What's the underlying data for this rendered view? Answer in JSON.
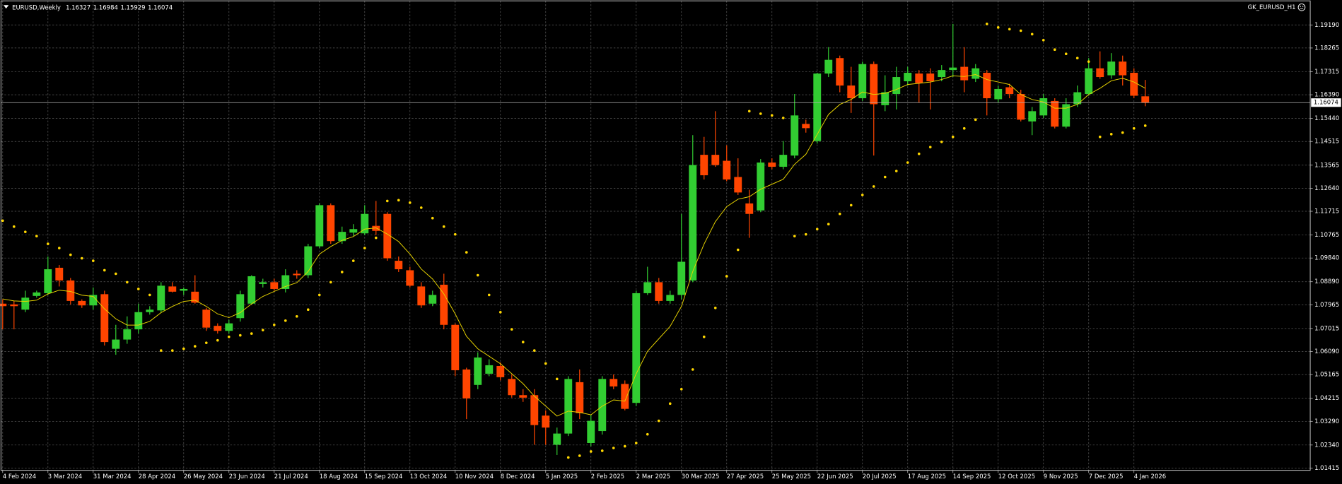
{
  "chart_data": {
    "type": "candlestick",
    "symbol": "EURUSD,Weekly",
    "indicator": "GK_EURUSD_H1",
    "up_color": "#32cd32",
    "down_color": "#ff4500",
    "ma_color": "#e6d200",
    "sar_color": "#ffd700",
    "grid": true,
    "categories": [
      "4 Feb 2024",
      null,
      null,
      null,
      "3 Mar 2024",
      null,
      null,
      null,
      "31 Mar 2024",
      null,
      null,
      null,
      "28 Apr 2024",
      null,
      null,
      null,
      "26 May 2024",
      null,
      null,
      null,
      "23 Jun 2024",
      null,
      null,
      null,
      "21 Jul 2024",
      null,
      null,
      null,
      "18 Aug 2024",
      null,
      null,
      null,
      "15 Sep 2024",
      null,
      null,
      null,
      "13 Oct 2024",
      null,
      null,
      null,
      "10 Nov 2024",
      null,
      null,
      null,
      "8 Dec 2024",
      null,
      null,
      null,
      "5 Jan 2025",
      null,
      null,
      null,
      "2 Feb 2025",
      null,
      null,
      null,
      "2 Mar 2025",
      null,
      null,
      null,
      "30 Mar 2025",
      null,
      null,
      null,
      "27 Apr 2025",
      null,
      null,
      null,
      "25 May 2025",
      null,
      null,
      null,
      "22 Jun 2025",
      null,
      null,
      null,
      "20 Jul 2025",
      null,
      null,
      null,
      "17 Aug 2025",
      null,
      null,
      null,
      "14 Sep 2025",
      null,
      null,
      null,
      "12 Oct 2025",
      null,
      null,
      null,
      "9 Nov 2025",
      null,
      null,
      null,
      "7 Dec 2025",
      null,
      null,
      null,
      "4 Jan 2026",
      null
    ],
    "open": [
      1.0801,
      1.0798,
      1.0777,
      1.0832,
      1.0843,
      1.0945,
      1.0894,
      1.0812,
      1.0794,
      1.0839,
      1.062,
      1.0657,
      1.0698,
      1.0767,
      1.0774,
      1.087,
      1.0853,
      1.0849,
      1.0777,
      1.0712,
      1.0692,
      1.0743,
      1.0801,
      1.088,
      1.0887,
      1.086,
      1.0921,
      1.0915,
      1.1031,
      1.1196,
      1.1052,
      1.1086,
      1.1083,
      1.1113,
      1.1161,
      1.0973,
      1.0935,
      1.087,
      1.0801,
      1.0877,
      1.0716,
      1.0537,
      1.0475,
      1.052,
      1.0551,
      1.0499,
      1.0434,
      1.0434,
      1.0352,
      1.0235,
      1.028,
      1.0486,
      1.0242,
      1.029,
      1.0499,
      1.0479,
      1.0403,
      1.0843,
      1.0887,
      1.0812,
      1.0836,
      1.0894,
      1.1398,
      1.1398,
      1.1374,
      1.1309,
      1.1203,
      1.1175,
      1.1367,
      1.135,
      1.1395,
      1.1522,
      1.1453,
      1.1724,
      1.1786,
      1.1676,
      1.1625,
      1.1762,
      1.1597,
      1.1642,
      1.1693,
      1.1724,
      1.1724,
      1.171,
      1.1738,
      1.1751,
      1.1703,
      1.1727,
      1.1621,
      1.1669,
      1.1642,
      1.1532,
      1.1556,
      1.1614,
      1.1511,
      1.1601,
      1.1642,
      1.1745,
      1.1717,
      1.1772,
      1.1727,
      1.16327
    ],
    "high": [
      1.0818,
      1.0812,
      1.0853,
      1.0853,
      1.099,
      1.0956,
      1.0904,
      1.0818,
      1.0866,
      1.0853,
      1.0716,
      1.075,
      1.0801,
      1.0791,
      1.0887,
      1.0887,
      1.0866,
      1.0915,
      1.0784,
      1.0722,
      1.0736,
      1.0853,
      1.0915,
      1.0901,
      1.0901,
      1.0939,
      1.0935,
      1.1041,
      1.1203,
      1.1203,
      1.111,
      1.112,
      1.1196,
      1.1213,
      1.1168,
      1.099,
      1.0949,
      1.0887,
      1.0853,
      1.0921,
      1.0722,
      1.0544,
      1.0606,
      1.0578,
      1.0565,
      1.0517,
      1.0458,
      1.0458,
      1.0373,
      1.0304,
      1.051,
      1.0537,
      1.0355,
      1.051,
      1.0517,
      1.0493,
      1.0853,
      1.0949,
      1.0904,
      1.0853,
      1.1161,
      1.1477,
      1.147,
      1.1573,
      1.1436,
      1.1384,
      1.1258,
      1.1381,
      1.1384,
      1.1453,
      1.1642,
      1.1539,
      1.1727,
      1.183,
      1.1796,
      1.1751,
      1.1772,
      1.1772,
      1.1717,
      1.1751,
      1.1751,
      1.1738,
      1.1745,
      1.1758,
      1.1923,
      1.183,
      1.1762,
      1.1738,
      1.1676,
      1.1683,
      1.1659,
      1.159,
      1.1642,
      1.1625,
      1.1625,
      1.1676,
      1.1786,
      1.1813,
      1.1806,
      1.1796,
      1.1745,
      1.16984
    ],
    "low": [
      1.0698,
      1.0698,
      1.0767,
      1.0825,
      1.0836,
      1.087,
      1.0798,
      1.0784,
      1.0777,
      1.0633,
      1.0596,
      1.064,
      1.0681,
      1.0757,
      1.0764,
      1.0846,
      1.0836,
      1.0801,
      1.0692,
      1.0681,
      1.0681,
      1.0729,
      1.0798,
      1.0866,
      1.0853,
      1.0846,
      1.0901,
      1.0904,
      1.1024,
      1.1041,
      1.1041,
      1.1072,
      1.1076,
      1.1076,
      1.0973,
      1.0928,
      1.0866,
      1.0784,
      1.0791,
      1.0698,
      1.051,
      1.0338,
      1.0458,
      1.051,
      1.0493,
      1.0424,
      1.0407,
      1.0235,
      1.0235,
      1.0194,
      1.027,
      1.0338,
      1.0229,
      1.0276,
      1.0458,
      1.0373,
      1.039,
      1.0836,
      1.0801,
      1.0801,
      1.0818,
      1.0887,
      1.1299,
      1.135,
      1.1292,
      1.1237,
      1.1065,
      1.1168,
      1.134,
      1.134,
      1.1384,
      1.1487,
      1.1443,
      1.171,
      1.1649,
      1.1566,
      1.1614,
      1.1395,
      1.1573,
      1.158,
      1.1676,
      1.1607,
      1.158,
      1.1693,
      1.171,
      1.1649,
      1.169,
      1.1556,
      1.1607,
      1.1625,
      1.1532,
      1.1477,
      1.1546,
      1.1504,
      1.1504,
      1.159,
      1.1635,
      1.1703,
      1.1703,
      1.1676,
      1.1625,
      1.15929
    ],
    "close": [
      1.0791,
      1.0791,
      1.0825,
      1.0846,
      1.0939,
      1.0894,
      1.0812,
      1.0794,
      1.0836,
      1.0647,
      1.0657,
      1.0698,
      1.0767,
      1.0777,
      1.0873,
      1.0849,
      1.086,
      1.0805,
      1.0705,
      1.0692,
      1.0722,
      1.0839,
      1.0911,
      1.0887,
      1.086,
      1.0915,
      1.0915,
      1.1031,
      1.1196,
      1.1052,
      1.1089,
      1.11,
      1.1161,
      1.1093,
      1.0983,
      1.0939,
      1.0873,
      1.0794,
      1.0836,
      1.0716,
      1.0534,
      1.0421,
      1.0585,
      1.0554,
      1.0506,
      1.0434,
      1.0424,
      1.0314,
      1.0304,
      1.028,
      1.0499,
      1.0362,
      1.0331,
      1.0499,
      1.0469,
      1.0379,
      1.0843,
      1.0887,
      1.0812,
      1.0836,
      1.0969,
      1.1357,
      1.1316,
      1.1357,
      1.1299,
      1.1247,
      1.1161,
      1.1367,
      1.135,
      1.1398,
      1.1556,
      1.1505,
      1.1724,
      1.1779,
      1.1676,
      1.1625,
      1.1762,
      1.1601,
      1.1649,
      1.171,
      1.1727,
      1.1686,
      1.1693,
      1.1738,
      1.1748,
      1.1697,
      1.1745,
      1.1625,
      1.1662,
      1.1642,
      1.1539,
      1.1573,
      1.1625,
      1.1511,
      1.1601,
      1.1649,
      1.1745,
      1.171,
      1.1772,
      1.1717,
      1.1635,
      1.16074
    ],
    "ma": [
      1.082,
      1.0812,
      1.081,
      1.0815,
      1.084,
      1.0855,
      1.085,
      1.0835,
      1.083,
      1.078,
      1.074,
      1.0715,
      1.0715,
      1.073,
      1.0765,
      1.079,
      1.081,
      1.0815,
      1.079,
      1.076,
      1.0745,
      1.0765,
      1.08,
      1.083,
      1.085,
      1.087,
      1.0885,
      1.093,
      1.1,
      1.103,
      1.1055,
      1.107,
      1.11,
      1.1105,
      1.108,
      1.105,
      1.1,
      1.094,
      1.09,
      1.084,
      1.076,
      1.067,
      1.062,
      1.059,
      1.056,
      1.052,
      1.048,
      1.043,
      1.039,
      1.035,
      1.037,
      1.0365,
      1.0355,
      1.039,
      1.0415,
      1.041,
      1.052,
      1.061,
      1.066,
      1.071,
      1.079,
      1.093,
      1.104,
      1.113,
      1.119,
      1.122,
      1.123,
      1.126,
      1.128,
      1.13,
      1.136,
      1.14,
      1.148,
      1.156,
      1.16,
      1.162,
      1.165,
      1.164,
      1.1645,
      1.166,
      1.168,
      1.1685,
      1.169,
      1.17,
      1.1715,
      1.1712,
      1.172,
      1.17,
      1.169,
      1.168,
      1.164,
      1.162,
      1.161,
      1.1585,
      1.1585,
      1.16,
      1.164,
      1.1665,
      1.1695,
      1.1705,
      1.169,
      1.1665
    ],
    "sar": [
      1.1134,
      1.111,
      1.1089,
      1.1072,
      1.1041,
      1.1024,
      1.0997,
      1.0983,
      1.0973,
      1.0935,
      1.0921,
      1.0887,
      1.086,
      1.0836,
      1.0613,
      1.0613,
      1.062,
      1.063,
      1.0644,
      1.0654,
      1.0668,
      1.0674,
      1.0681,
      1.0695,
      1.0716,
      1.0733,
      1.075,
      1.0777,
      1.0836,
      1.0887,
      1.0928,
      1.0973,
      1.1024,
      1.1065,
      1.1213,
      1.1216,
      1.1206,
      1.1186,
      1.1144,
      1.111,
      1.1079,
      1.1007,
      1.0915,
      1.0836,
      1.0767,
      1.0698,
      1.0647,
      1.0613,
      1.0561,
      1.0499,
      1.0184,
      1.0191,
      1.0208,
      1.0211,
      1.0222,
      1.0229,
      1.0242,
      1.0277,
      1.0331,
      1.04,
      1.0458,
      1.0537,
      1.0668,
      1.0784,
      1.0911,
      1.1017,
      1.1573,
      1.1563,
      1.1556,
      1.1546,
      1.1072,
      1.1079,
      1.11,
      1.112,
      1.1161,
      1.1196,
      1.1237,
      1.1271,
      1.1309,
      1.1333,
      1.1367,
      1.1402,
      1.1429,
      1.145,
      1.147,
      1.1504,
      1.1539,
      1.1923,
      1.1909,
      1.1902,
      1.1896,
      1.1882,
      1.1858,
      1.182,
      1.1803,
      1.1786,
      1.1772,
      1.147,
      1.1481,
      1.1487,
      1.1504,
      1.1515
    ],
    "ylim": [
      1.01325,
      1.2019
    ],
    "yticks": [
      {
        "value": 1.1919,
        "label": "1.19190"
      },
      1.18265,
      1.17315,
      {
        "value": 1.1639,
        "label": "1.16390"
      },
      {
        "value": 1.1544,
        "label": "1.15440"
      },
      1.14515,
      1.13565,
      {
        "value": 1.1264,
        "label": "1.12640"
      },
      1.11715,
      1.10765,
      {
        "value": 1.0984,
        "label": "1.09840"
      },
      {
        "value": 1.0889,
        "label": "1.08890"
      },
      1.07965,
      1.07015,
      {
        "value": 1.0609,
        "label": "1.06090"
      },
      1.05165,
      1.04215,
      {
        "value": 1.0329,
        "label": "1.03290"
      },
      {
        "value": 1.0234,
        "label": "1.02340"
      },
      1.01415
    ]
  }
}
